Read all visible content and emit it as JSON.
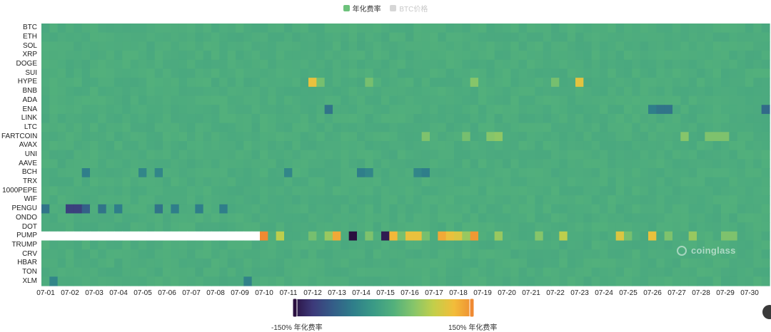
{
  "legend": {
    "items": [
      {
        "label": "年化费率",
        "color": "#6dc27c",
        "active": true
      },
      {
        "label": "BTC价格",
        "color": "#cccccc",
        "active": false
      }
    ]
  },
  "visual_map": {
    "min_label": "-150% 年化费率",
    "max_label": "150% 年化费率",
    "colors": [
      "#2a0f3f",
      "#3d3a7a",
      "#345d88",
      "#2f7e8a",
      "#3a9a86",
      "#52b07c",
      "#86c56a",
      "#c3cf4a",
      "#f2bd3a",
      "#ef8a32"
    ]
  },
  "watermark": "coinglass",
  "chart_data": {
    "type": "heatmap",
    "title": "",
    "x_categories": [
      "07-01",
      "07-02",
      "07-03",
      "07-04",
      "07-05",
      "07-06",
      "07-07",
      "07-08",
      "07-09",
      "07-10",
      "07-11",
      "07-12",
      "07-13",
      "07-14",
      "07-15",
      "07-16",
      "07-17",
      "07-18",
      "07-19",
      "07-20",
      "07-21",
      "07-22",
      "07-23",
      "07-24",
      "07-25",
      "07-26",
      "07-27",
      "07-28",
      "07-29",
      "07-30"
    ],
    "y_categories": [
      "BTC",
      "ETH",
      "SOL",
      "XRP",
      "DOGE",
      "SUI",
      "HYPE",
      "BNB",
      "ADA",
      "ENA",
      "LINK",
      "LTC",
      "FARTCOIN",
      "AVAX",
      "UNI",
      "AAVE",
      "BCH",
      "TRX",
      "1000PEPE",
      "WIF",
      "PENGU",
      "ONDO",
      "DOT",
      "PUMP",
      "TRUMP",
      "CRV",
      "HBAR",
      "TON",
      "XLM"
    ],
    "value_range": [
      -150,
      150
    ],
    "value_unit": "% 年化费率",
    "default_value": 10.95,
    "cells_per_day": 3,
    "missing": [
      {
        "coin": "PUMP",
        "from_slot": 0,
        "to_slot": 26
      }
    ],
    "notable_values": [
      {
        "coin": "PUMP",
        "slot": 27,
        "value": 150
      },
      {
        "coin": "PUMP",
        "slot": 29,
        "value": 80
      },
      {
        "coin": "PUMP",
        "slot": 33,
        "value": 40
      },
      {
        "coin": "PUMP",
        "slot": 35,
        "value": 60
      },
      {
        "coin": "PUMP",
        "slot": 36,
        "value": 130
      },
      {
        "coin": "PUMP",
        "slot": 37,
        "value": 10
      },
      {
        "coin": "PUMP",
        "slot": 38,
        "value": -150
      },
      {
        "coin": "PUMP",
        "slot": 40,
        "value": 45
      },
      {
        "coin": "PUMP",
        "slot": 42,
        "value": -140
      },
      {
        "coin": "PUMP",
        "slot": 43,
        "value": 120
      },
      {
        "coin": "PUMP",
        "slot": 44,
        "value": 40
      },
      {
        "coin": "PUMP",
        "slot": 45,
        "value": 110
      },
      {
        "coin": "PUMP",
        "slot": 46,
        "value": 110
      },
      {
        "coin": "PUMP",
        "slot": 47,
        "value": 40
      },
      {
        "coin": "PUMP",
        "slot": 48,
        "value": 10
      },
      {
        "coin": "PUMP",
        "slot": 49,
        "value": 130
      },
      {
        "coin": "PUMP",
        "slot": 50,
        "value": 110
      },
      {
        "coin": "PUMP",
        "slot": 51,
        "value": 100
      },
      {
        "coin": "PUMP",
        "slot": 52,
        "value": 60
      },
      {
        "coin": "PUMP",
        "slot": 53,
        "value": 140
      },
      {
        "coin": "PUMP",
        "slot": 56,
        "value": 60
      },
      {
        "coin": "PUMP",
        "slot": 61,
        "value": 50
      },
      {
        "coin": "PUMP",
        "slot": 64,
        "value": 80
      },
      {
        "coin": "PUMP",
        "slot": 71,
        "value": 100
      },
      {
        "coin": "PUMP",
        "slot": 72,
        "value": 40
      },
      {
        "coin": "PUMP",
        "slot": 75,
        "value": 110
      },
      {
        "coin": "PUMP",
        "slot": 77,
        "value": 45
      },
      {
        "coin": "PUMP",
        "slot": 80,
        "value": 60
      },
      {
        "coin": "PUMP",
        "slot": 84,
        "value": 45
      },
      {
        "coin": "PUMP",
        "slot": 85,
        "value": 45
      },
      {
        "coin": "HYPE",
        "slot": 33,
        "value": 110
      },
      {
        "coin": "HYPE",
        "slot": 34,
        "value": 40
      },
      {
        "coin": "HYPE",
        "slot": 40,
        "value": 40
      },
      {
        "coin": "HYPE",
        "slot": 53,
        "value": 50
      },
      {
        "coin": "HYPE",
        "slot": 63,
        "value": 40
      },
      {
        "coin": "HYPE",
        "slot": 66,
        "value": 105
      },
      {
        "coin": "FARTCOIN",
        "slot": 47,
        "value": 45
      },
      {
        "coin": "FARTCOIN",
        "slot": 52,
        "value": 40
      },
      {
        "coin": "FARTCOIN",
        "slot": 55,
        "value": 50
      },
      {
        "coin": "FARTCOIN",
        "slot": 56,
        "value": 55
      },
      {
        "coin": "FARTCOIN",
        "slot": 79,
        "value": 50
      },
      {
        "coin": "FARTCOIN",
        "slot": 82,
        "value": 45
      },
      {
        "coin": "FARTCOIN",
        "slot": 83,
        "value": 45
      },
      {
        "coin": "FARTCOIN",
        "slot": 84,
        "value": 45
      },
      {
        "coin": "ENA",
        "slot": 35,
        "value": -60
      },
      {
        "coin": "ENA",
        "slot": 75,
        "value": -50
      },
      {
        "coin": "ENA",
        "slot": 76,
        "value": -60
      },
      {
        "coin": "ENA",
        "slot": 77,
        "value": -60
      },
      {
        "coin": "ENA",
        "slot": 89,
        "value": -70
      },
      {
        "coin": "PENGU",
        "slot": 0,
        "value": -60
      },
      {
        "coin": "PENGU",
        "slot": 3,
        "value": -110
      },
      {
        "coin": "PENGU",
        "slot": 4,
        "value": -110
      },
      {
        "coin": "PENGU",
        "slot": 5,
        "value": -80
      },
      {
        "coin": "PENGU",
        "slot": 7,
        "value": -60
      },
      {
        "coin": "PENGU",
        "slot": 9,
        "value": -50
      },
      {
        "coin": "PENGU",
        "slot": 14,
        "value": -60
      },
      {
        "coin": "PENGU",
        "slot": 16,
        "value": -50
      },
      {
        "coin": "PENGU",
        "slot": 19,
        "value": -50
      },
      {
        "coin": "PENGU",
        "slot": 22,
        "value": -50
      },
      {
        "coin": "BCH",
        "slot": 5,
        "value": -50
      },
      {
        "coin": "BCH",
        "slot": 12,
        "value": -40
      },
      {
        "coin": "BCH",
        "slot": 14,
        "value": -40
      },
      {
        "coin": "BCH",
        "slot": 30,
        "value": -40
      },
      {
        "coin": "BCH",
        "slot": 39,
        "value": -50
      },
      {
        "coin": "BCH",
        "slot": 40,
        "value": -40
      },
      {
        "coin": "BCH",
        "slot": 46,
        "value": -40
      },
      {
        "coin": "BCH",
        "slot": 47,
        "value": -50
      },
      {
        "coin": "XLM",
        "slot": 1,
        "value": -40
      },
      {
        "coin": "XLM",
        "slot": 25,
        "value": -45
      }
    ]
  }
}
